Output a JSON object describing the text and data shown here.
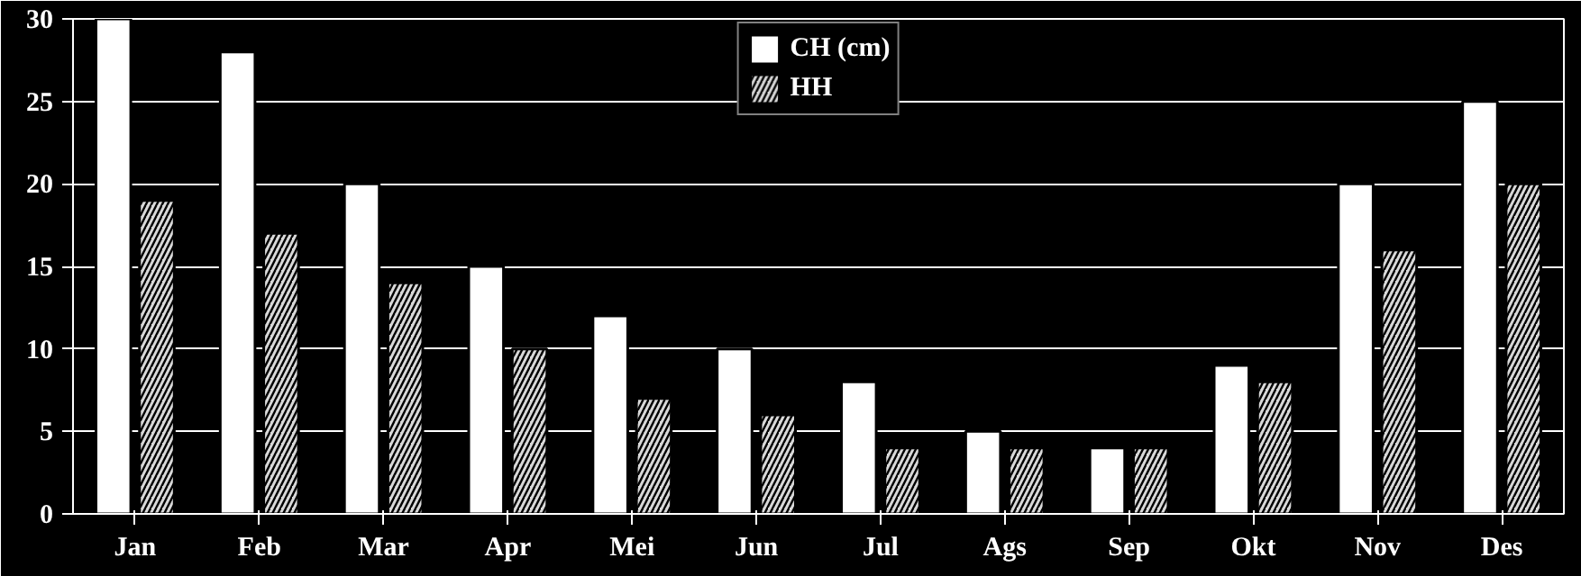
{
  "chart_data": {
    "type": "bar",
    "categories": [
      "Jan",
      "Feb",
      "Mar",
      "Apr",
      "Mei",
      "Jun",
      "Jul",
      "Ags",
      "Sep",
      "Okt",
      "Nov",
      "Des"
    ],
    "series": [
      {
        "name": "CH (cm)",
        "color": "#ffffff",
        "values": [
          30,
          28,
          20,
          15,
          12,
          10,
          8,
          5,
          4,
          9,
          20,
          25
        ]
      },
      {
        "name": "HH",
        "color": "#d9d9d9",
        "values": [
          19,
          17,
          14,
          10,
          7,
          6,
          4,
          4,
          4,
          8,
          16,
          20
        ]
      }
    ],
    "ylim": [
      0,
      30
    ],
    "yticks": [
      0,
      5,
      10,
      15,
      20,
      25,
      30
    ],
    "grid": "y",
    "legend": "top"
  }
}
